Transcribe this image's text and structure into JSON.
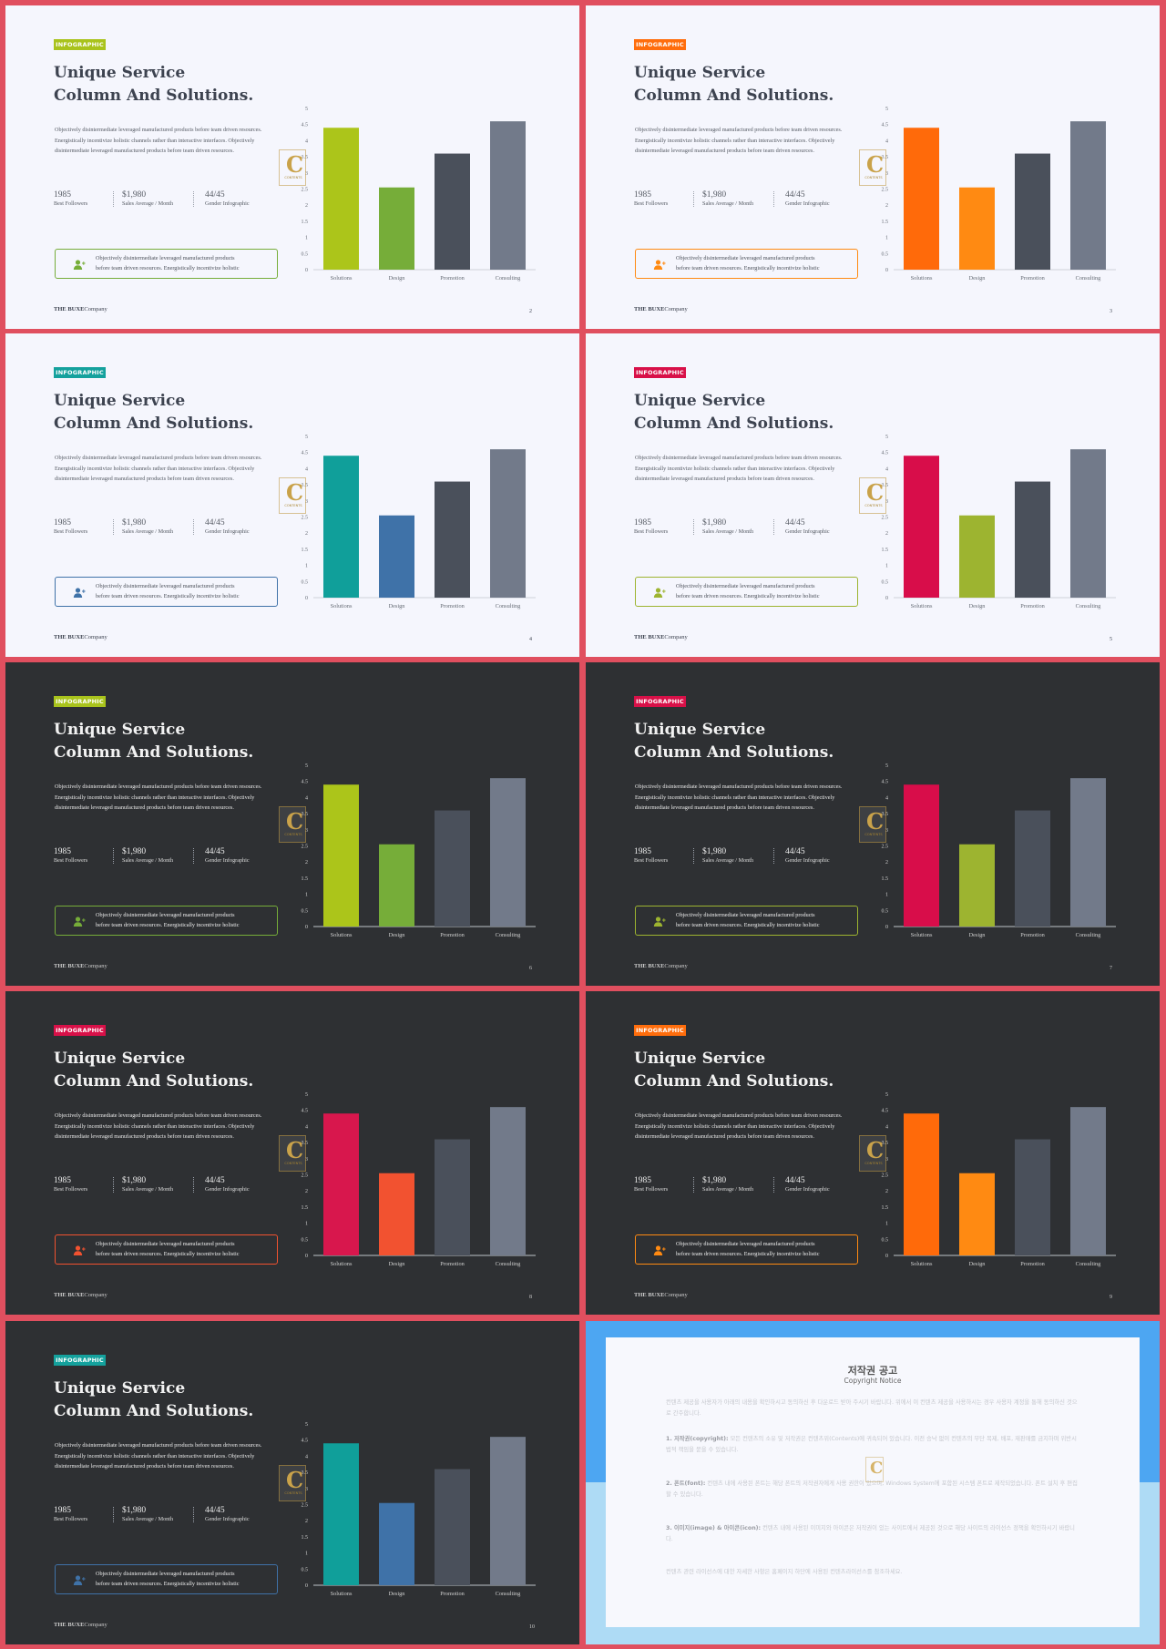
{
  "slide_template": {
    "tag": "INFOGRAPHIC",
    "title_line1": "Unique Service",
    "title_line2": "Column And Solutions.",
    "description": "Objectively disintermediate leveraged manufactured products before team driven resources. Energistically incentivize holistic channels rather than interactive interfaces. Objectively disintermediate leveraged manufactured products before team driven resources.",
    "stats": [
      {
        "value": "1985",
        "label": "Best Followers"
      },
      {
        "value": "$1,980",
        "label": "Sales Average / Month"
      },
      {
        "value": "44/45",
        "label": "Gender Infographic"
      }
    ],
    "box_line1": "Objectively disintermediate leveraged manufactured products",
    "box_line2": "before team driven resources. Energistically incentivize holistic",
    "brand_bold": "THE BUXE",
    "brand_rest": "Company",
    "watermark_letter": "C",
    "watermark_text": "CONTENTS"
  },
  "chart_data": {
    "type": "bar",
    "categories": [
      "Solutions",
      "Design",
      "Promotion",
      "Consulting"
    ],
    "values": [
      4.4,
      2.55,
      3.6,
      4.6
    ],
    "ylim": [
      0,
      5
    ],
    "yticks": [
      "0",
      "0.5",
      "1",
      "1.5",
      "2",
      "2.5",
      "3",
      "3.5",
      "4",
      "4.5",
      "5"
    ]
  },
  "slides": [
    {
      "theme": "light",
      "page": "2",
      "accent": "#a9c31c",
      "colors": [
        "#acc51a",
        "#76ad39",
        "#4a505b",
        "#727a8a"
      ],
      "icon": "user-add-icon"
    },
    {
      "theme": "light",
      "page": "3",
      "accent": "#ff6d0c",
      "colors": [
        "#ff6a0a",
        "#ff8a12",
        "#4a505b",
        "#727a8a"
      ],
      "icon": "user-add-icon"
    },
    {
      "theme": "light",
      "page": "4",
      "accent": "#14a19d",
      "colors": [
        "#109f9a",
        "#3f72a8",
        "#4a505b",
        "#727a8a"
      ],
      "icon": "user-add-icon"
    },
    {
      "theme": "light",
      "page": "5",
      "accent": "#d81048",
      "colors": [
        "#d80d4a",
        "#9db430",
        "#4a505b",
        "#727a8a"
      ],
      "icon": "user-add-icon"
    },
    {
      "theme": "dark",
      "page": "6",
      "accent": "#a9c31c",
      "colors": [
        "#acc51a",
        "#76ad39",
        "#4a505b",
        "#727a8a"
      ],
      "icon": "user-add-icon"
    },
    {
      "theme": "dark",
      "page": "7",
      "accent": "#d81048",
      "colors": [
        "#d80d4a",
        "#9db430",
        "#4a505b",
        "#727a8a"
      ],
      "icon": "user-add-icon"
    },
    {
      "theme": "dark",
      "page": "8",
      "accent": "#d81048",
      "colors": [
        "#d8174d",
        "#f25230",
        "#4a505b",
        "#727a8a"
      ],
      "icon": "user-add-icon"
    },
    {
      "theme": "dark",
      "page": "9",
      "accent": "#ff6d0c",
      "colors": [
        "#ff6a0a",
        "#ff8a12",
        "#4a505b",
        "#727a8a"
      ],
      "icon": "user-add-icon"
    },
    {
      "theme": "dark",
      "page": "10",
      "accent": "#14a19d",
      "colors": [
        "#109f9a",
        "#3f72a8",
        "#4a505b",
        "#727a8a"
      ],
      "icon": "user-add-icon"
    }
  ],
  "copyright": {
    "title": "저작권 공고",
    "subtitle": "Copyright Notice",
    "intro": "컨텐츠 제공을 사용자가 아래의 내용을 확인하시고 동의하신 후 다운로드 받아 주시기 바랍니다. 위에서 이 컨텐츠 제공을 사용하시는 경우 사용자 계정을 통해 동의하신 것으로 간주합니다.",
    "p1_head": "1. 저작권(copyright):",
    "p1": "모든 컨텐츠의 소유 및 저작권은 컨텐츠위(Contents)에 귀속되어 있습니다. 이전 승낙 없이 컨텐츠의 무단 복제, 배포, 재판매를 금지하며 위반시 법적 책임을 묻을 수 있습니다.",
    "p2_head": "2. 폰트(font):",
    "p2": "컨텐츠 내에 사용된 폰트는 해당 폰트의 저작권자에게 사용 권한이 있으며, Windows System에 포함된 시스템 폰트로 제작되었습니다. 폰트 설치 후 편집할 수 있습니다.",
    "p3_head": "3. 이미지(image) & 아이콘(icon):",
    "p3": "컨텐츠 내에 사용된 이미지와 아이콘은 저작권이 있는 사이트에서 제공된 것으로 해당 사이트의 라이선스 정책을 확인하시기 바랍니다.",
    "outro": "컨텐츠 관련 라이선스에 대한 자세한 사항은 홈페이지 하단에 사용된 컨텐츠라이선스를 참조하세요."
  }
}
